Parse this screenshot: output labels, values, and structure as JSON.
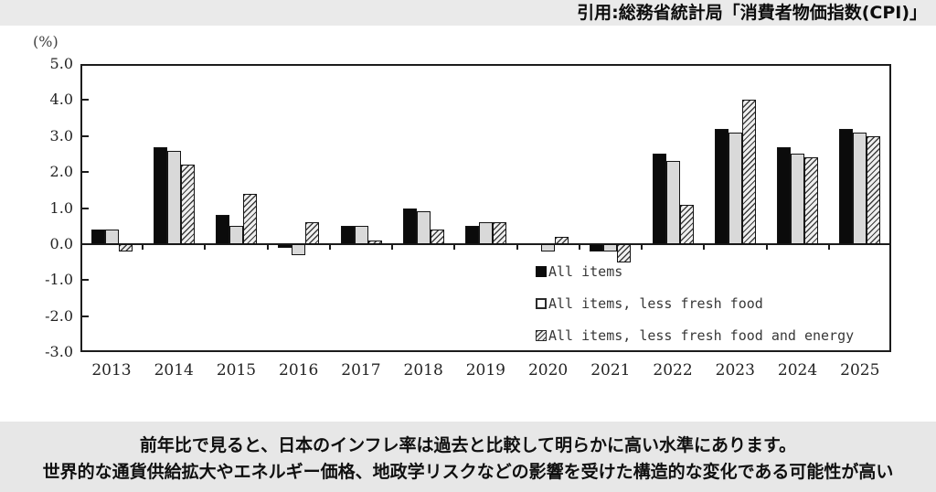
{
  "header": {
    "source_text": "引用:総務省統計局「消費者物価指数(CPI)」"
  },
  "chart_data": {
    "type": "bar",
    "title": "",
    "unit_label": "(%)",
    "categories": [
      "2013",
      "2014",
      "2015",
      "2016",
      "2017",
      "2018",
      "2019",
      "2020",
      "2021",
      "2022",
      "2023",
      "2024",
      "2025"
    ],
    "series": [
      {
        "name": "All items",
        "style": "solid-black",
        "values": [
          0.4,
          2.7,
          0.8,
          -0.1,
          0.5,
          1.0,
          0.5,
          0.0,
          -0.2,
          2.5,
          3.2,
          2.7,
          3.2
        ]
      },
      {
        "name": "All items, less fresh food",
        "style": "solid-gray",
        "values": [
          0.4,
          2.6,
          0.5,
          -0.3,
          0.5,
          0.9,
          0.6,
          -0.2,
          -0.2,
          2.3,
          3.1,
          2.5,
          3.1
        ]
      },
      {
        "name": "All items, less fresh food and energy",
        "style": "hatched",
        "values": [
          -0.2,
          2.2,
          1.4,
          0.6,
          0.1,
          0.4,
          0.6,
          0.2,
          -0.5,
          1.1,
          4.0,
          2.4,
          3.0
        ]
      }
    ],
    "ylim": [
      -3.0,
      5.0
    ],
    "ytick_step": 1.0,
    "ytick_labels": [
      "5.0",
      "4.0",
      "3.0",
      "2.0",
      "1.0",
      "0.0",
      "-1.0",
      "-2.0",
      "-3.0"
    ],
    "grid": false,
    "legend_position": "inside-right-bottom",
    "colors": {
      "bar_black": "#0b0b0b",
      "bar_gray_fill": "#d9d9d9",
      "hatch_line": "#3d3d3d",
      "hatch_bg": "#efefef",
      "axis": "#1c1c1c",
      "band_bg": "#e9e9e9"
    }
  },
  "footer": {
    "line1": "前年比で見ると、日本のインフレ率は過去と比較して明らかに高い水準にあります。",
    "line2": "世界的な通貨供給拡大やエネルギー価格、地政学リスクなどの影響を受けた構造的な変化である可能性が高い"
  }
}
